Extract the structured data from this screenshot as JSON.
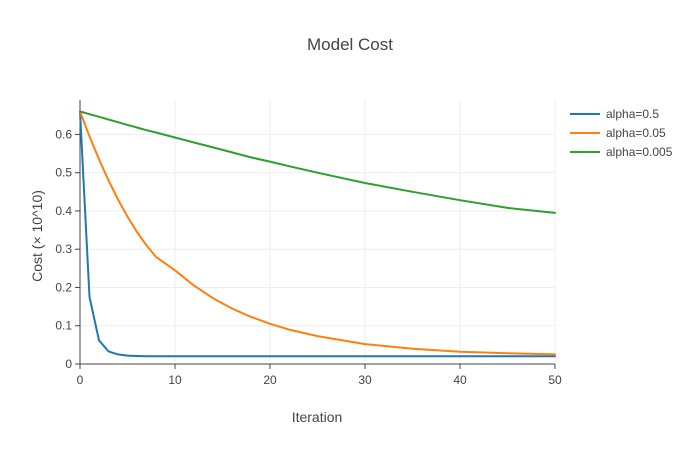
{
  "chart_data": {
    "type": "line",
    "title": "Model Cost",
    "xlabel": "Iteration",
    "ylabel": "Cost (× 10^10)",
    "xlim": [
      0,
      50
    ],
    "ylim": [
      0,
      0.69
    ],
    "xticks": [
      0,
      10,
      20,
      30,
      40,
      50
    ],
    "yticks": [
      0,
      0.1,
      0.2,
      0.3,
      0.4,
      0.5,
      0.6
    ],
    "xtick_labels": [
      "0",
      "10",
      "20",
      "30",
      "40",
      "50"
    ],
    "ytick_labels": [
      "0",
      "0.1",
      "0.2",
      "0.3",
      "0.4",
      "0.5",
      "0.6"
    ],
    "grid": true,
    "legend_position": "top-right",
    "x": [
      0,
      1,
      2,
      3,
      4,
      5,
      6,
      7,
      8,
      10,
      12,
      14,
      16,
      18,
      20,
      22,
      25,
      30,
      35,
      40,
      45,
      50
    ],
    "series": [
      {
        "name": "alpha=0.5",
        "color": "#1f77b4",
        "values": [
          0.66,
          0.175,
          0.062,
          0.033,
          0.025,
          0.022,
          0.021,
          0.0205,
          0.02,
          0.02,
          0.02,
          0.02,
          0.02,
          0.02,
          0.02,
          0.02,
          0.02,
          0.02,
          0.02,
          0.02,
          0.02,
          0.02
        ]
      },
      {
        "name": "alpha=0.05",
        "color": "#ff7f0e",
        "values": [
          0.66,
          0.595,
          0.535,
          0.48,
          0.43,
          0.385,
          0.345,
          0.31,
          0.28,
          0.245,
          0.205,
          0.172,
          0.145,
          0.123,
          0.105,
          0.09,
          0.073,
          0.052,
          0.04,
          0.032,
          0.028,
          0.025
        ]
      },
      {
        "name": "alpha=0.005",
        "color": "#2ca02c",
        "values": [
          0.66,
          0.653,
          0.646,
          0.639,
          0.632,
          0.625,
          0.618,
          0.611,
          0.605,
          0.592,
          0.579,
          0.566,
          0.553,
          0.54,
          0.529,
          0.517,
          0.5,
          0.473,
          0.45,
          0.428,
          0.408,
          0.395
        ]
      }
    ]
  }
}
